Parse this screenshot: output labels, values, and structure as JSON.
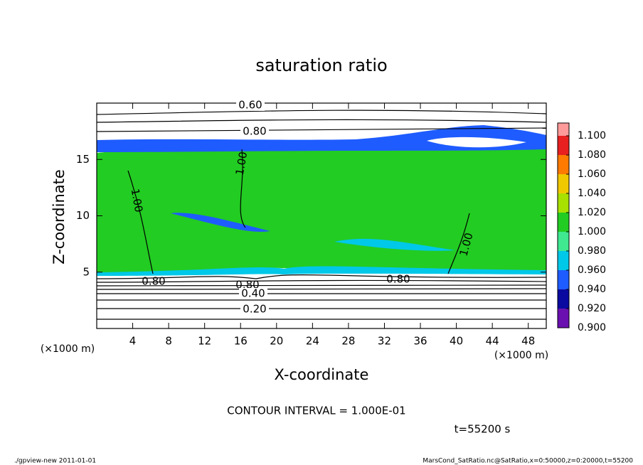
{
  "chart_data": {
    "type": "contour",
    "title": "saturation ratio",
    "x_label": "X-coordinate",
    "y_label": "Z-coordinate",
    "y_unit_label": "(×1000 m)",
    "x_unit_label": "(×1000 m)",
    "xlim": [
      0,
      50
    ],
    "xticks": [
      4,
      8,
      12,
      16,
      20,
      24,
      28,
      32,
      36,
      40,
      44,
      48
    ],
    "ylim": [
      0,
      20
    ],
    "yticks": [
      5,
      10,
      15
    ],
    "colorbar": {
      "clim": [
        0.9,
        1.1
      ],
      "ticks": [
        {
          "value": 0.9,
          "label": "0.900"
        },
        {
          "value": 0.92,
          "label": "0.920"
        },
        {
          "value": 0.94,
          "label": "0.940"
        },
        {
          "value": 0.96,
          "label": "0.960"
        },
        {
          "value": 0.98,
          "label": "0.980"
        },
        {
          "value": 1.0,
          "label": "1.000"
        },
        {
          "value": 1.02,
          "label": "1.020"
        },
        {
          "value": 1.04,
          "label": "1.040"
        },
        {
          "value": 1.06,
          "label": "1.060"
        },
        {
          "value": 1.08,
          "label": "1.080"
        },
        {
          "value": 1.1,
          "label": "1.100"
        }
      ],
      "colors": [
        "#6a10b0",
        "#0a0aa0",
        "#1e5cff",
        "#00c8e8",
        "#40e890",
        "#22cc22",
        "#a8e000",
        "#f0c800",
        "#ff7a00",
        "#e82020"
      ]
    },
    "contour_labels": [
      "0.60",
      "0.80",
      "1.00",
      "1.00",
      "1.00",
      "0.80",
      "0.80",
      "0.80",
      "0.40",
      "0.20"
    ],
    "contour_interval": "CONTOUR INTERVAL = 1.000E-01",
    "time_label": "t=55200 s"
  },
  "footer": {
    "left": "./gpview-new   2011-01-01",
    "right": "MarsCond_SatRatio.nc@SatRatio,x=0:50000,z=0:20000,t=55200"
  }
}
